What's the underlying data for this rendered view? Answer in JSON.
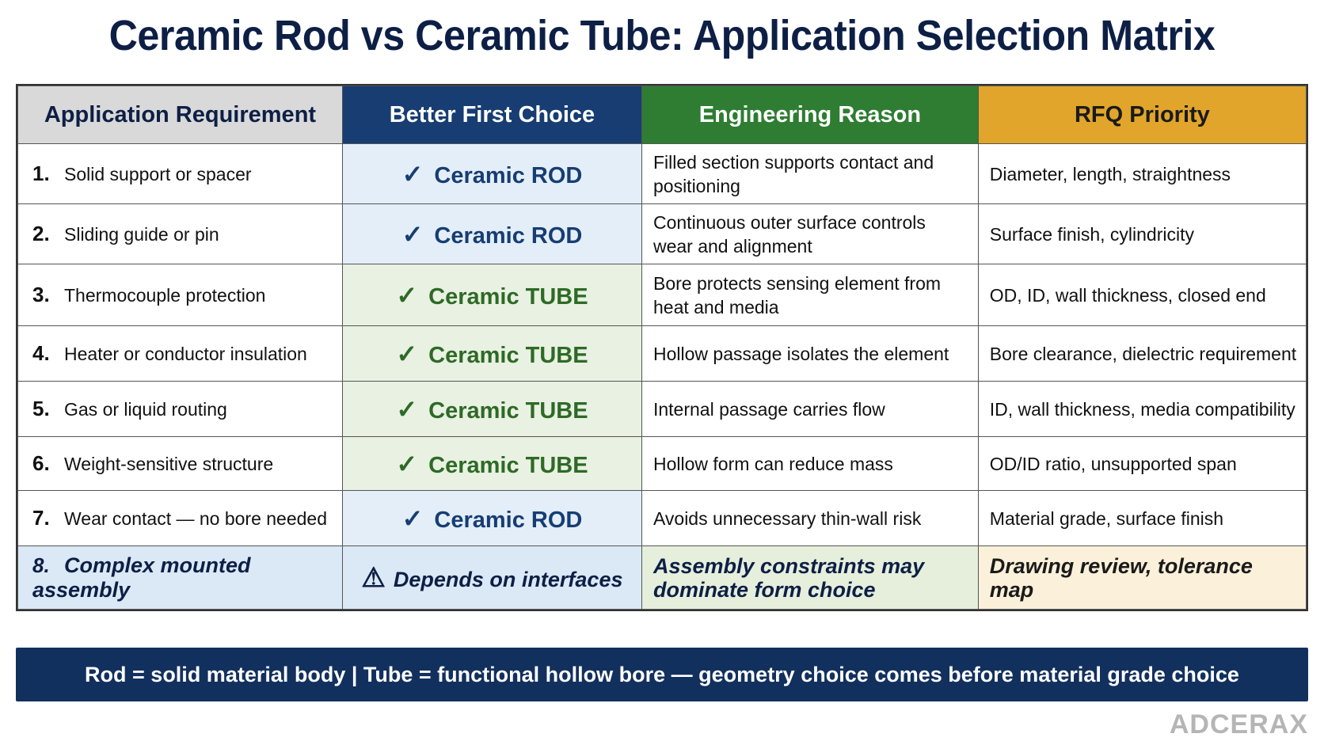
{
  "title": "Ceramic Rod vs Ceramic Tube: Application Selection Matrix",
  "headers": [
    "Application Requirement",
    "Better First Choice",
    "Engineering Reason",
    "RFQ Priority"
  ],
  "colors": {
    "title": "#0d1f45",
    "header_requirement": "#d9d9d9",
    "header_choice": "#173d73",
    "header_reason": "#2e7d32",
    "header_rfq": "#e0a52a",
    "footer": "#12305e"
  },
  "rows": [
    {
      "num": "1.",
      "requirement": "Solid support or spacer",
      "mark": "✓",
      "choice": "Ceramic ROD",
      "kind": "rod",
      "reason": "Filled section supports contact and positioning",
      "rfq": "Diameter, length, straightness"
    },
    {
      "num": "2.",
      "requirement": "Sliding guide or pin",
      "mark": "✓",
      "choice": "Ceramic ROD",
      "kind": "rod",
      "reason": "Continuous outer surface controls wear and alignment",
      "rfq": "Surface finish, cylindricity"
    },
    {
      "num": "3.",
      "requirement": "Thermocouple protection",
      "mark": "✓",
      "choice": "Ceramic TUBE",
      "kind": "tube",
      "reason": "Bore protects sensing element from heat and media",
      "rfq": "OD, ID, wall thickness, closed end"
    },
    {
      "num": "4.",
      "requirement": "Heater or conductor insulation",
      "mark": "✓",
      "choice": "Ceramic TUBE",
      "kind": "tube",
      "reason": "Hollow passage isolates the element",
      "rfq": "Bore clearance, dielectric requirement"
    },
    {
      "num": "5.",
      "requirement": "Gas or liquid routing",
      "mark": "✓",
      "choice": "Ceramic TUBE",
      "kind": "tube",
      "reason": "Internal passage carries flow",
      "rfq": "ID, wall thickness, media compatibility"
    },
    {
      "num": "6.",
      "requirement": "Weight-sensitive structure",
      "mark": "✓",
      "choice": "Ceramic TUBE",
      "kind": "tube",
      "reason": "Hollow form can reduce mass",
      "rfq": "OD/ID ratio, unsupported span"
    },
    {
      "num": "7.",
      "requirement": "Wear contact — no bore needed",
      "mark": "✓",
      "choice": "Ceramic ROD",
      "kind": "rod",
      "reason": "Avoids unnecessary thin-wall risk",
      "rfq": "Material grade, surface finish"
    },
    {
      "num": "8.",
      "requirement": "Complex mounted assembly",
      "mark": "⚠",
      "choice": "Depends on interfaces",
      "kind": "special",
      "reason": "Assembly constraints may dominate form choice",
      "rfq": "Drawing review, tolerance map"
    }
  ],
  "footer": "Rod = solid material body  |  Tube = functional hollow bore — geometry choice comes before material grade choice",
  "brand": "ADCERAX"
}
